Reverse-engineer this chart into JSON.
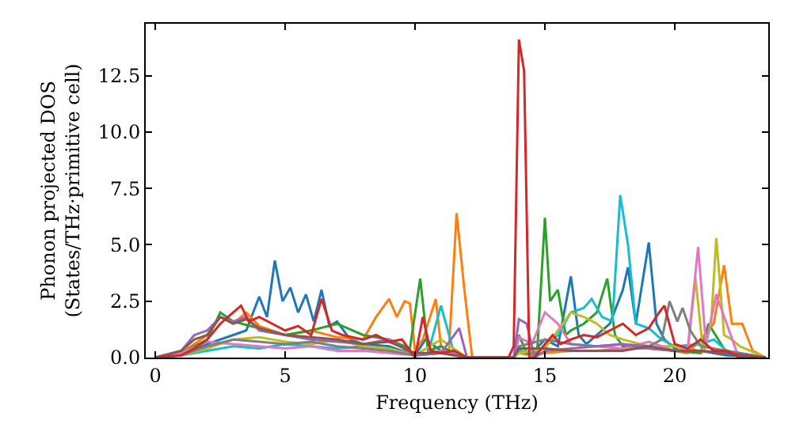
{
  "chart_data": {
    "type": "line",
    "xlabel": "Frequency (THz)",
    "ylabel": "Phonon projected DOS\n(States/THz·primitive cell)",
    "xlim": [
      -0.37,
      23.6
    ],
    "ylim": [
      0,
      14.8
    ],
    "xticks": [
      0,
      5,
      10,
      15,
      20
    ],
    "yticks": [
      {
        "value": 0,
        "label": "0.0"
      },
      {
        "value": 2.5,
        "label": "2.5"
      },
      {
        "value": 5,
        "label": "5.0"
      },
      {
        "value": 7.5,
        "label": "7.5"
      },
      {
        "value": 10,
        "label": "10.0"
      },
      {
        "value": 12.5,
        "label": "12.5"
      }
    ],
    "marker": "none",
    "line_style": "solid",
    "series": [
      {
        "color": "#1f77b4",
        "x": [
          0,
          1,
          2,
          3,
          3.5,
          4,
          4.3,
          4.6,
          4.9,
          5.2,
          5.5,
          5.8,
          6.1,
          6.4,
          6.7,
          7,
          7.5,
          8,
          9,
          10,
          10.4,
          11,
          12,
          13.8,
          14,
          14.5,
          15,
          15.5,
          16,
          16.3,
          16.6,
          17,
          17.5,
          18,
          18.2,
          18.5,
          19,
          19.3,
          19.6,
          20,
          21,
          22,
          23.5
        ],
        "values": [
          0,
          0.1,
          0.6,
          1.0,
          1.2,
          2.7,
          1.8,
          4.3,
          2.5,
          3.1,
          2.0,
          2.8,
          1.6,
          3.0,
          1.4,
          1.6,
          0.8,
          0.6,
          0.5,
          0.1,
          0.8,
          0.3,
          0,
          0,
          0.3,
          0.2,
          0.8,
          0.5,
          3.6,
          1.0,
          0.6,
          1.0,
          1.5,
          3.0,
          4.0,
          1.5,
          5.1,
          1.5,
          0.8,
          0.4,
          0.3,
          0.1,
          0
        ]
      },
      {
        "color": "#ff7f0e",
        "x": [
          0,
          1,
          2,
          2.5,
          3,
          3.5,
          4,
          5,
          6,
          7,
          8,
          8.5,
          9,
          9.3,
          9.6,
          9.8,
          10,
          10.3,
          10.8,
          11,
          11.3,
          11.6,
          11.9,
          12.2,
          13.8,
          14,
          14.5,
          15,
          16,
          17,
          18,
          19,
          20,
          20.5,
          21,
          21.5,
          21.9,
          22.2,
          22.6,
          23,
          23.5
        ],
        "values": [
          0,
          0.2,
          1.0,
          1.8,
          1.5,
          2.0,
          1.4,
          1.0,
          1.2,
          0.9,
          0.8,
          1.8,
          2.6,
          1.8,
          2.5,
          2.4,
          0.3,
          0.8,
          2.6,
          0.5,
          0.2,
          6.4,
          3.0,
          0,
          0,
          0.2,
          0.1,
          0.2,
          0.3,
          0.3,
          0.4,
          0.4,
          0.3,
          0.2,
          0.8,
          1.5,
          4.1,
          1.5,
          1.5,
          0.3,
          0
        ]
      },
      {
        "color": "#2ca02c",
        "x": [
          0,
          1,
          2,
          2.5,
          3,
          4,
          5,
          6,
          7,
          8,
          9,
          9.8,
          10.2,
          10.5,
          11,
          11.5,
          12,
          13.8,
          14,
          14.3,
          14.7,
          15.0,
          15.2,
          15.5,
          15.8,
          16,
          16.5,
          17,
          17.4,
          17.7,
          18,
          19,
          20,
          21,
          21.3,
          22,
          23.5
        ],
        "values": [
          0,
          0.2,
          0.8,
          2.0,
          1.6,
          1.3,
          1.0,
          1.2,
          1.5,
          1.0,
          0.8,
          0.4,
          3.5,
          0.3,
          0.5,
          0.2,
          0,
          0,
          1.0,
          0.2,
          0.2,
          6.2,
          2.5,
          3.0,
          1.0,
          1.2,
          1.5,
          2.0,
          3.5,
          1.0,
          0.5,
          0.5,
          0.3,
          0.2,
          1.5,
          0.2,
          0
        ]
      },
      {
        "color": "#17becf",
        "x": [
          0,
          1,
          2,
          3,
          4,
          5,
          6,
          7,
          8,
          9,
          10,
          10.5,
          11,
          11.5,
          12,
          13.8,
          14,
          14.5,
          15,
          15.5,
          16,
          16.5,
          16.8,
          17.2,
          17.6,
          17.9,
          18.2,
          18.5,
          19,
          19.5,
          20,
          21,
          21.5,
          22,
          23.5
        ],
        "values": [
          0,
          0.1,
          0.3,
          0.5,
          0.4,
          0.6,
          0.5,
          0.4,
          0.5,
          0.4,
          0.1,
          0.2,
          2.3,
          0.2,
          0,
          0,
          0.3,
          0.2,
          0.5,
          1.0,
          2.0,
          2.2,
          2.6,
          1.8,
          1.6,
          7.2,
          5.0,
          1.5,
          1.3,
          0.8,
          0.5,
          0.6,
          0.8,
          0.3,
          0
        ]
      },
      {
        "color": "#bcbd22",
        "x": [
          0,
          1,
          2,
          3,
          4,
          5,
          6,
          7,
          8,
          9,
          10,
          11,
          12,
          13.8,
          14,
          15,
          16,
          16.5,
          17,
          17.5,
          18,
          19,
          20,
          20.5,
          20.8,
          21.1,
          21.4,
          21.6,
          21.9,
          22.2,
          22.5,
          23.5
        ],
        "values": [
          0,
          0.1,
          0.4,
          0.8,
          0.9,
          0.7,
          0.6,
          0.8,
          0.5,
          0.4,
          0.1,
          0.8,
          0,
          0,
          0.2,
          0.4,
          2.0,
          1.8,
          1.5,
          1.0,
          0.8,
          0.5,
          0.5,
          0.3,
          3.5,
          0.2,
          1.5,
          5.3,
          1.0,
          0.8,
          0.5,
          0
        ]
      },
      {
        "color": "#e377c2",
        "x": [
          0,
          1,
          2,
          3,
          4,
          5,
          6,
          7,
          8,
          9,
          10,
          11,
          12,
          13.8,
          14,
          14.5,
          15,
          15.5,
          16,
          17,
          18,
          19,
          20,
          20.5,
          20.9,
          21.2,
          21.6,
          22,
          22.4,
          23.5
        ],
        "values": [
          0,
          0.2,
          0.7,
          0.6,
          0.5,
          0.4,
          0.5,
          0.3,
          0.3,
          0.2,
          0.1,
          0.3,
          0,
          0,
          0.9,
          0.6,
          2.0,
          1.5,
          0.6,
          0.5,
          0.4,
          0.7,
          0.3,
          0.4,
          4.9,
          0.6,
          2.8,
          1.5,
          0.2,
          0
        ]
      },
      {
        "color": "#7f7f7f",
        "x": [
          0,
          1,
          2,
          3,
          4,
          5,
          6,
          7,
          8,
          9,
          10,
          11,
          12,
          13.8,
          14,
          15,
          16,
          17,
          18,
          19,
          19.5,
          19.8,
          20.1,
          20.3,
          20.6,
          21,
          22,
          23.5
        ],
        "values": [
          0,
          0.1,
          0.5,
          0.8,
          0.7,
          0.6,
          0.7,
          0.5,
          0.4,
          0.3,
          0.1,
          0.2,
          0,
          0,
          0.5,
          0.8,
          0.6,
          0.5,
          0.6,
          0.5,
          0.8,
          2.5,
          1.6,
          2.2,
          1.2,
          0.5,
          0.3,
          0
        ]
      },
      {
        "color": "#9467bd",
        "x": [
          0,
          1,
          1.5,
          2,
          2.5,
          3,
          3.5,
          4,
          5,
          6,
          7,
          8,
          9,
          10,
          11,
          11.7,
          12,
          13.8,
          14,
          14.3,
          14.6,
          15,
          16,
          17,
          18,
          19,
          20,
          21,
          22,
          23.5
        ],
        "values": [
          0,
          0.3,
          1.0,
          1.2,
          1.8,
          1.6,
          1.8,
          1.2,
          1.0,
          0.8,
          0.7,
          0.6,
          0.8,
          0.1,
          0.2,
          1.3,
          0,
          0,
          1.7,
          1.5,
          0,
          0.3,
          0.4,
          0.5,
          0.6,
          0.4,
          0.3,
          0.3,
          0.2,
          0
        ]
      },
      {
        "color": "#8c564b",
        "x": [
          0,
          1,
          1.5,
          2,
          2.5,
          3,
          3.5,
          4,
          5,
          6,
          7,
          8,
          9,
          10,
          11,
          12,
          13.8,
          14,
          15,
          16,
          17,
          18,
          19,
          20,
          21,
          22,
          23.5
        ],
        "values": [
          0,
          0.3,
          0.8,
          1.0,
          1.8,
          1.5,
          1.7,
          1.3,
          1.0,
          0.9,
          0.8,
          0.6,
          0.7,
          0.2,
          0.2,
          0,
          0,
          0.4,
          0.4,
          0.3,
          0.3,
          0.3,
          0.5,
          0.3,
          0.3,
          0.2,
          0
        ]
      },
      {
        "color": "#d62728",
        "x": [
          0,
          1,
          1.5,
          2,
          2.5,
          3,
          3.3,
          3.6,
          4,
          4.5,
          5,
          5.5,
          6,
          6.4,
          6.8,
          7.2,
          8,
          8.5,
          9,
          9.5,
          10,
          10.3,
          10.6,
          11,
          11.5,
          12,
          13.6,
          13.8,
          14.0,
          14.2,
          14.4,
          14.6,
          15,
          15.3,
          15.6,
          16,
          16.5,
          17,
          17.5,
          18,
          18.5,
          19,
          19.4,
          19.6,
          20,
          20.5,
          21,
          21.5,
          22,
          22.5,
          23.5
        ],
        "values": [
          0,
          0.1,
          0.4,
          0.8,
          1.5,
          2.0,
          2.3,
          1.6,
          1.8,
          1.5,
          1.2,
          1.4,
          1.0,
          2.6,
          1.2,
          1.0,
          0.8,
          1.0,
          0.7,
          0.8,
          0,
          1.8,
          0.3,
          0.2,
          0.3,
          0,
          0,
          0.5,
          14.1,
          12.7,
          0,
          0,
          0.6,
          1.0,
          0.6,
          0.8,
          1.0,
          0.9,
          1.2,
          1.5,
          1.0,
          1.3,
          2.0,
          2.3,
          0.6,
          0.4,
          0.8,
          0.3,
          0.3,
          0,
          0
        ]
      }
    ]
  }
}
